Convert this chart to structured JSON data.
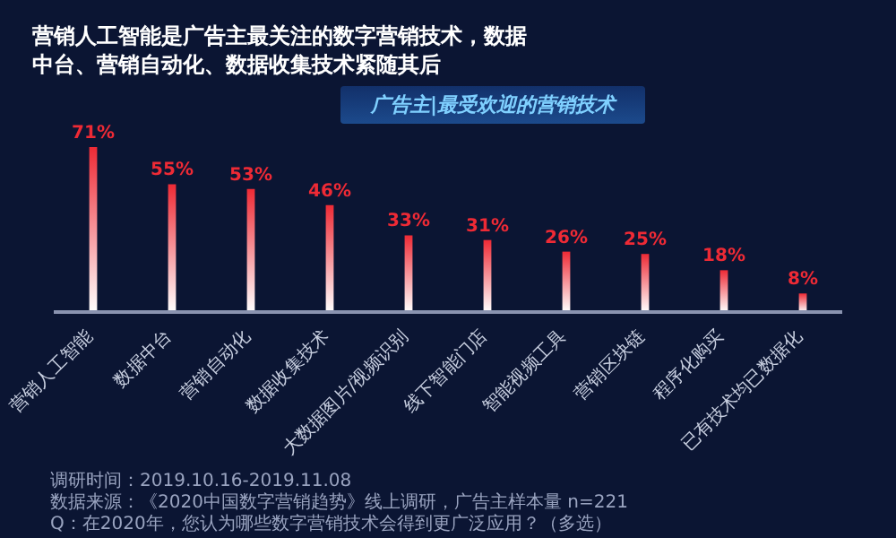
{
  "chart_data": {
    "type": "bar",
    "title": "营销人工智能是广告主最关注的数字营销技术，数据中台、营销自动化、数据收集技术紧随其后",
    "subtitle": "广告主|最受欢迎的营销技术",
    "categories": [
      "营销人工智能",
      "数据中台",
      "营销自动化",
      "数据收集技术",
      "大数据图片/视频识别",
      "线下智能门店",
      "智能视频工具",
      "营销区块链",
      "程序化购买",
      "已有技术均已数据化"
    ],
    "values": [
      71,
      55,
      53,
      46,
      33,
      31,
      26,
      25,
      18,
      8
    ],
    "value_labels": [
      "71%",
      "55%",
      "53%",
      "46%",
      "33%",
      "31%",
      "26%",
      "25%",
      "18%",
      "8%"
    ],
    "color": "#ee2a35",
    "annotations": [
      "调研时间：2019.10.16-2019.11.08",
      "数据来源：《2020中国数字营销趋势》线上调研，广告主样本量 n=221",
      "Q：在2020年，您认为哪些数字营销技术会得到更广泛应用？（多选）"
    ]
  }
}
